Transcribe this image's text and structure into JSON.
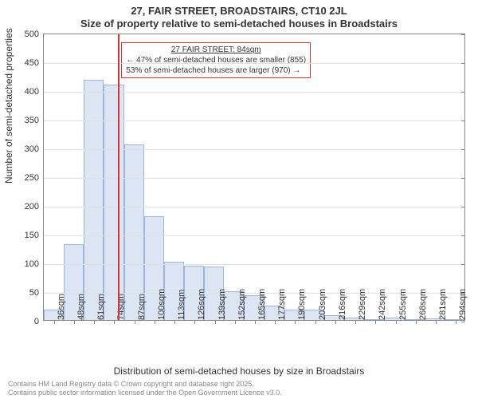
{
  "title_main": "27, FAIR STREET, BROADSTAIRS, CT10 2JL",
  "title_sub": "Size of property relative to semi-detached houses in Broadstairs",
  "ylabel": "Number of semi-detached properties",
  "xlabel": "Distribution of semi-detached houses by size in Broadstairs",
  "footer_line1": "Contains HM Land Registry data © Crown copyright and database right 2025.",
  "footer_line2": "Contains public sector information licensed under the Open Government Licence v3.0.",
  "chart": {
    "type": "histogram",
    "ylim": [
      0,
      500
    ],
    "ytick_step": 50,
    "yticks": [
      0,
      50,
      100,
      150,
      200,
      250,
      300,
      350,
      400,
      450,
      500
    ],
    "categories": [
      "36sqm",
      "48sqm",
      "61sqm",
      "74sqm",
      "87sqm",
      "100sqm",
      "113sqm",
      "126sqm",
      "139sqm",
      "152sqm",
      "165sqm",
      "177sqm",
      "190sqm",
      "203sqm",
      "216sqm",
      "229sqm",
      "242sqm",
      "255sqm",
      "268sqm",
      "281sqm",
      "294sqm"
    ],
    "values": [
      18,
      132,
      418,
      410,
      305,
      180,
      102,
      94,
      93,
      50,
      43,
      25,
      18,
      18,
      8,
      4,
      1,
      4,
      1,
      3,
      1
    ],
    "bar_fill": "#dbe5f4",
    "bar_stroke": "#9cb5d8",
    "axis_color": "#888888",
    "grid_color": "#e0e0e0",
    "background_color": "#ffffff",
    "marker": {
      "position_index": 3.7,
      "color": "#d33333",
      "callout_lines": [
        "27 FAIR STREET: 84sqm",
        "← 47% of semi-detached houses are smaller (855)",
        "53% of semi-detached houses are larger (970) →"
      ]
    },
    "fonts": {
      "title_fontsize": 13,
      "label_fontsize": 12,
      "tick_fontsize": 11,
      "callout_fontsize": 10,
      "footer_fontsize": 9
    }
  }
}
